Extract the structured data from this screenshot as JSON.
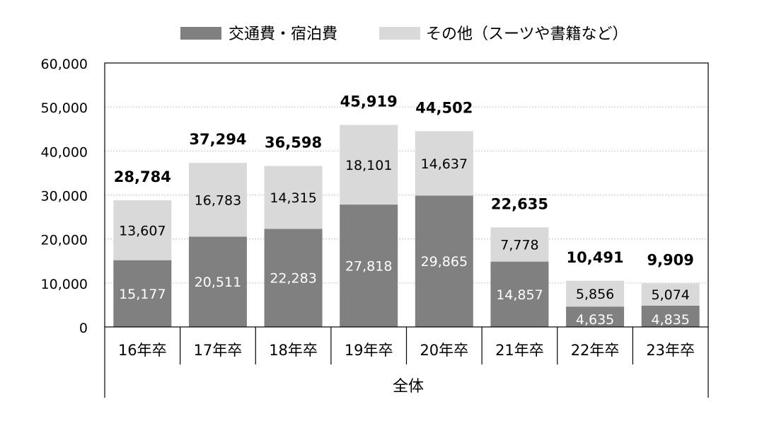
{
  "chart_data": {
    "type": "bar",
    "stacked": true,
    "categories": [
      "16年卒",
      "17年卒",
      "18年卒",
      "19年卒",
      "20年卒",
      "21年卒",
      "22年卒",
      "23年卒"
    ],
    "group_label": "全体",
    "series": [
      {
        "name": "交通費・宿泊費",
        "color": "#808080",
        "values": [
          15177,
          20511,
          22283,
          27818,
          29865,
          14857,
          4635,
          4835
        ]
      },
      {
        "name": "その他（スーツや書籍など）",
        "color": "#d9d9d9",
        "values": [
          13607,
          16783,
          14315,
          18101,
          14637,
          7778,
          5856,
          5074
        ]
      }
    ],
    "totals": [
      28784,
      37294,
      36598,
      45919,
      44502,
      22635,
      10491,
      9909
    ],
    "y_ticks": [
      "0",
      "10,000",
      "20,000",
      "30,000",
      "40,000",
      "50,000",
      "60,000"
    ],
    "ylim": [
      0,
      60000
    ],
    "grid": true,
    "legend_position": "top"
  }
}
